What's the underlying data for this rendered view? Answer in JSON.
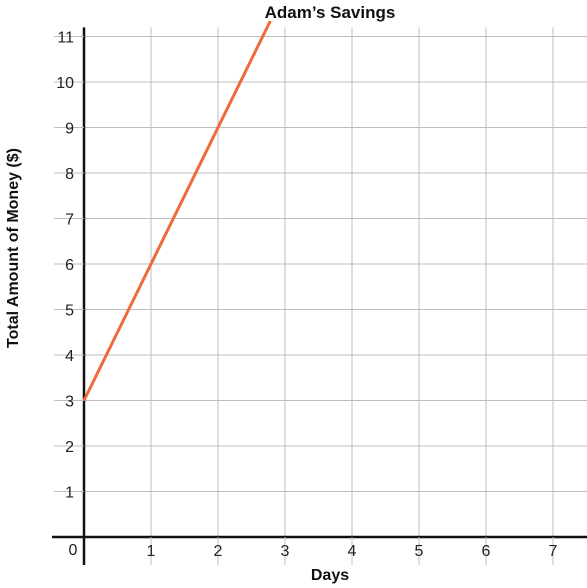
{
  "chart_data": {
    "type": "line",
    "title": "Adam’s Savings",
    "xlabel": "Days",
    "ylabel": "Total Amount of Money ($)",
    "origin_label": "0",
    "xlim": [
      0,
      7.5
    ],
    "ylim": [
      0,
      11.2
    ],
    "x_ticks": [
      1,
      2,
      3,
      4,
      5,
      6,
      7
    ],
    "y_ticks": [
      1,
      2,
      3,
      4,
      5,
      6,
      7,
      8,
      9,
      10,
      11
    ],
    "grid": true,
    "series": [
      {
        "color": "#ef6a3a",
        "x": [
          0,
          2.78
        ],
        "y": [
          3,
          11.34
        ]
      }
    ]
  }
}
